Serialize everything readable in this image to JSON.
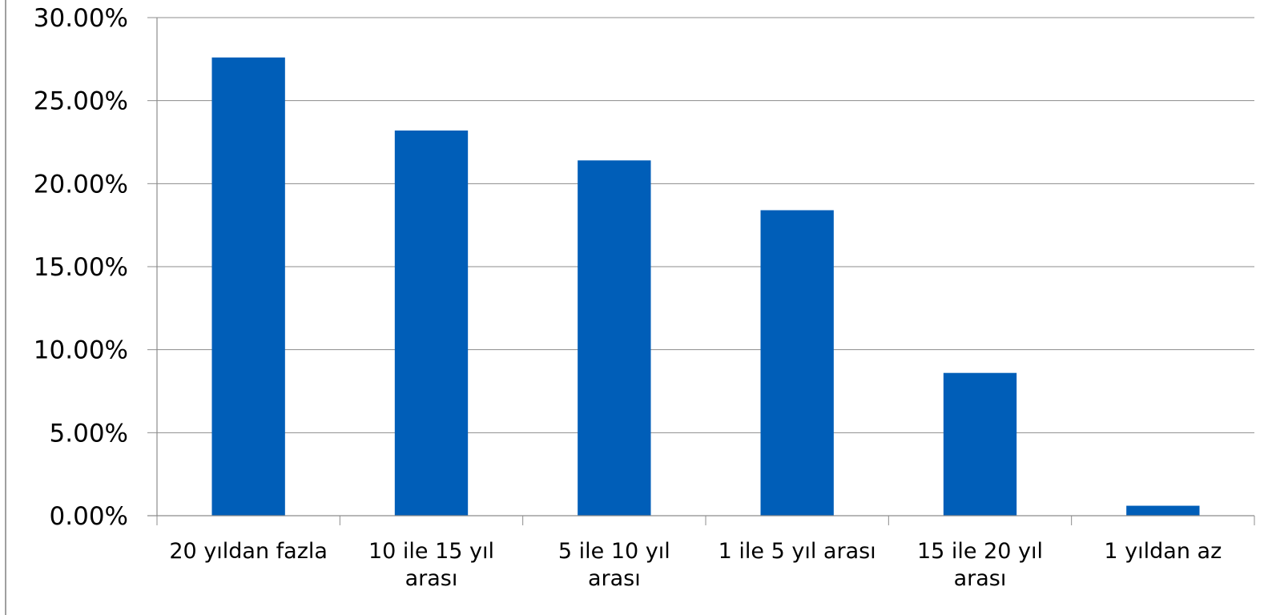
{
  "chart_data": {
    "type": "bar",
    "title": "",
    "xlabel": "",
    "ylabel": "",
    "categories": [
      [
        "20 yıldan fazla"
      ],
      [
        "10 ile 15 yıl",
        "arası"
      ],
      [
        "5 ile 10 yıl",
        "arası"
      ],
      [
        "1 ile 5 yıl arası"
      ],
      [
        "15 ile 20 yıl",
        "arası"
      ],
      [
        "1 yıldan az"
      ]
    ],
    "values": [
      27.6,
      23.2,
      21.4,
      18.4,
      8.6,
      0.6
    ],
    "ylim": [
      0,
      30
    ],
    "yticks": [
      "0.00%",
      "5.00%",
      "10.00%",
      "15.00%",
      "20.00%",
      "25.00%",
      "30.00%"
    ],
    "grid": true,
    "legend": "none",
    "bar_color": "#005EB8"
  }
}
